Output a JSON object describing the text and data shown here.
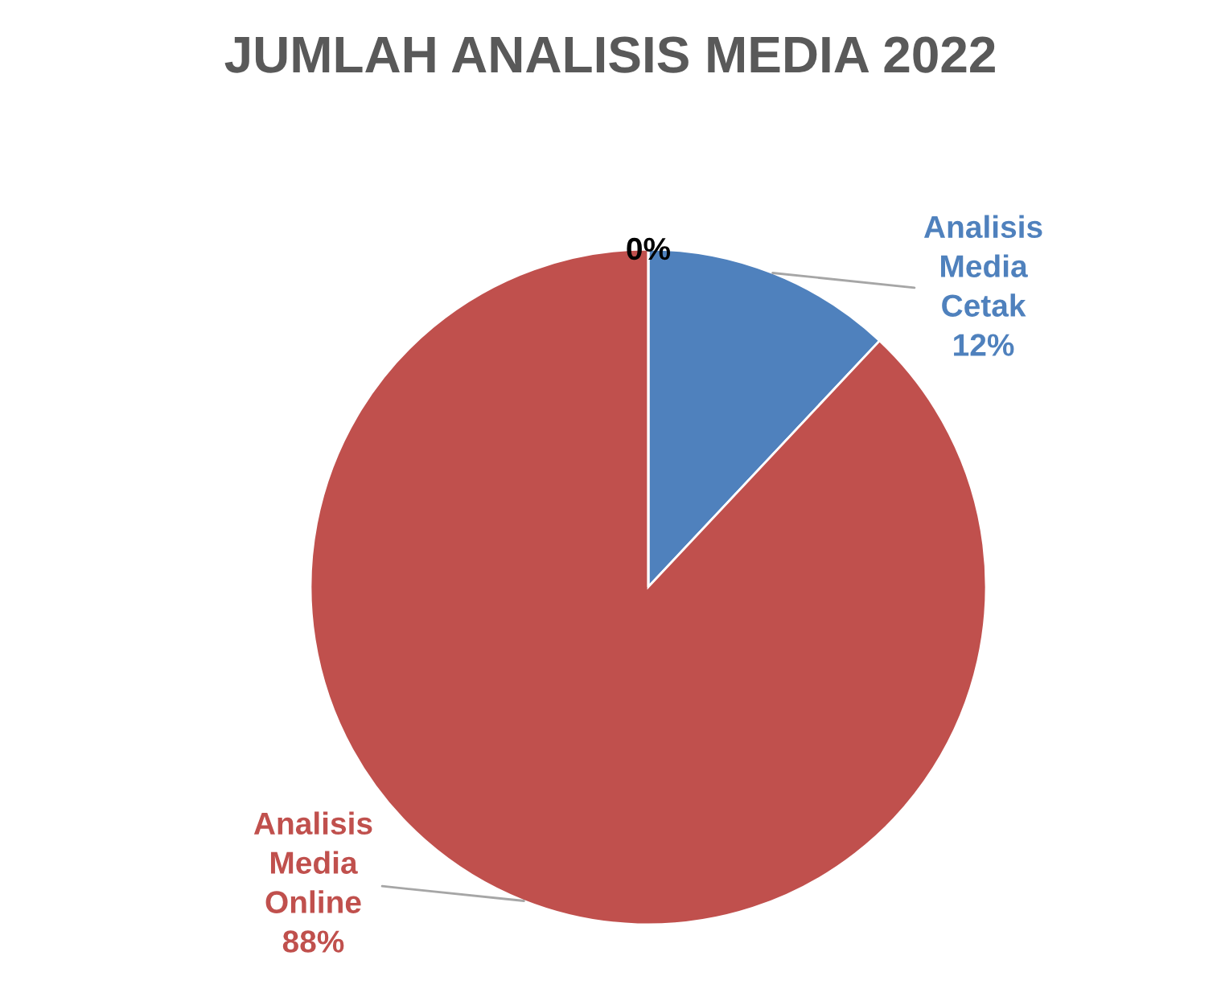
{
  "chart_data": {
    "type": "pie",
    "title": "JUMLAH ANALISIS MEDIA 2022",
    "categories": [
      "Analisis Media Cetak",
      "Analisis Media Online",
      null
    ],
    "values": [
      12,
      88,
      0
    ],
    "value_labels": [
      "12%",
      "88%",
      "0%"
    ],
    "colors": [
      "#4f81bd",
      "#c0504d",
      "#9bbb59"
    ]
  }
}
